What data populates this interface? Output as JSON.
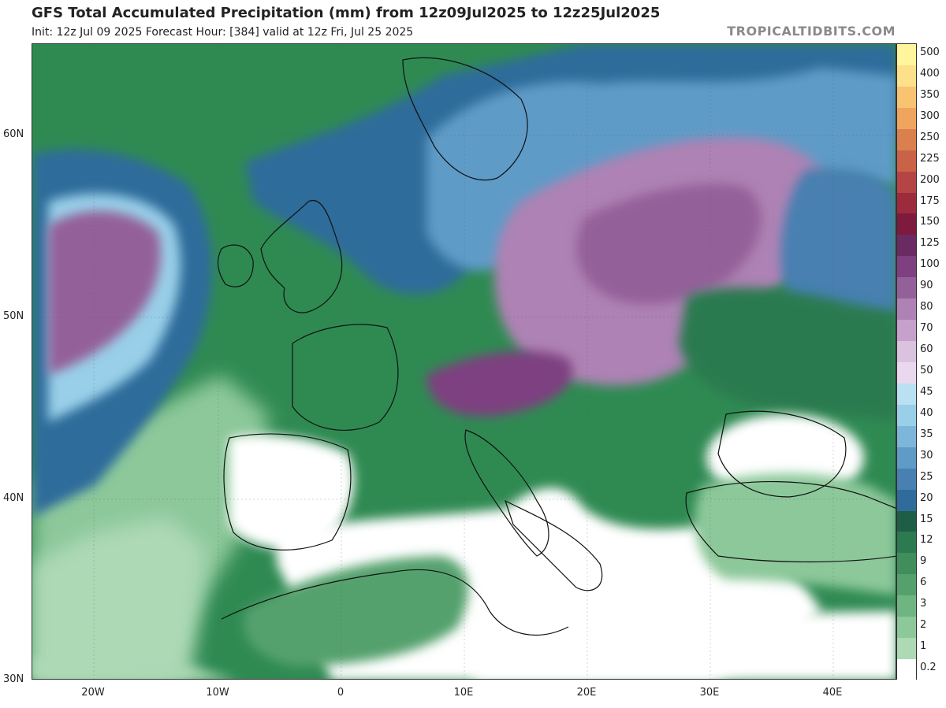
{
  "header": {
    "title": "GFS Total Accumulated Precipitation (mm) from 12z09Jul2025 to 12z25Jul2025",
    "subtitle": "Init: 12z Jul 09 2025   Forecast Hour: [384]   valid at 12z Fri, Jul 25 2025",
    "site": "TROPICALTIDBITS.COM"
  },
  "map": {
    "lat_labels": [
      "60N",
      "50N",
      "40N",
      "30N"
    ],
    "lon_labels": [
      "20W",
      "10W",
      "0",
      "10E",
      "20E",
      "30E",
      "40E"
    ]
  },
  "legend": {
    "values": [
      "500",
      "400",
      "350",
      "300",
      "250",
      "225",
      "200",
      "175",
      "150",
      "125",
      "100",
      "90",
      "80",
      "70",
      "60",
      "50",
      "45",
      "40",
      "35",
      "30",
      "25",
      "20",
      "15",
      "12",
      "9",
      "6",
      "3",
      "2",
      "1",
      "0.2"
    ],
    "colors": [
      "#fff59d",
      "#fde08a",
      "#f8c472",
      "#f0a55e",
      "#d9804e",
      "#c96247",
      "#b54545",
      "#9c2c3c",
      "#7d1a3e",
      "#6a2a62",
      "#7e4080",
      "#94609a",
      "#ae82b4",
      "#c5a1cb",
      "#d9c3df",
      "#ead9ee",
      "#b9e1f2",
      "#99cfe8",
      "#7cb7d9",
      "#5f9bc7",
      "#4780b1",
      "#2f6c9b",
      "#1e5e46",
      "#2c7a4f",
      "#3f8e5c",
      "#55a16d",
      "#6fb581",
      "#8cc89a",
      "#add9b5",
      "#ffffff"
    ]
  }
}
